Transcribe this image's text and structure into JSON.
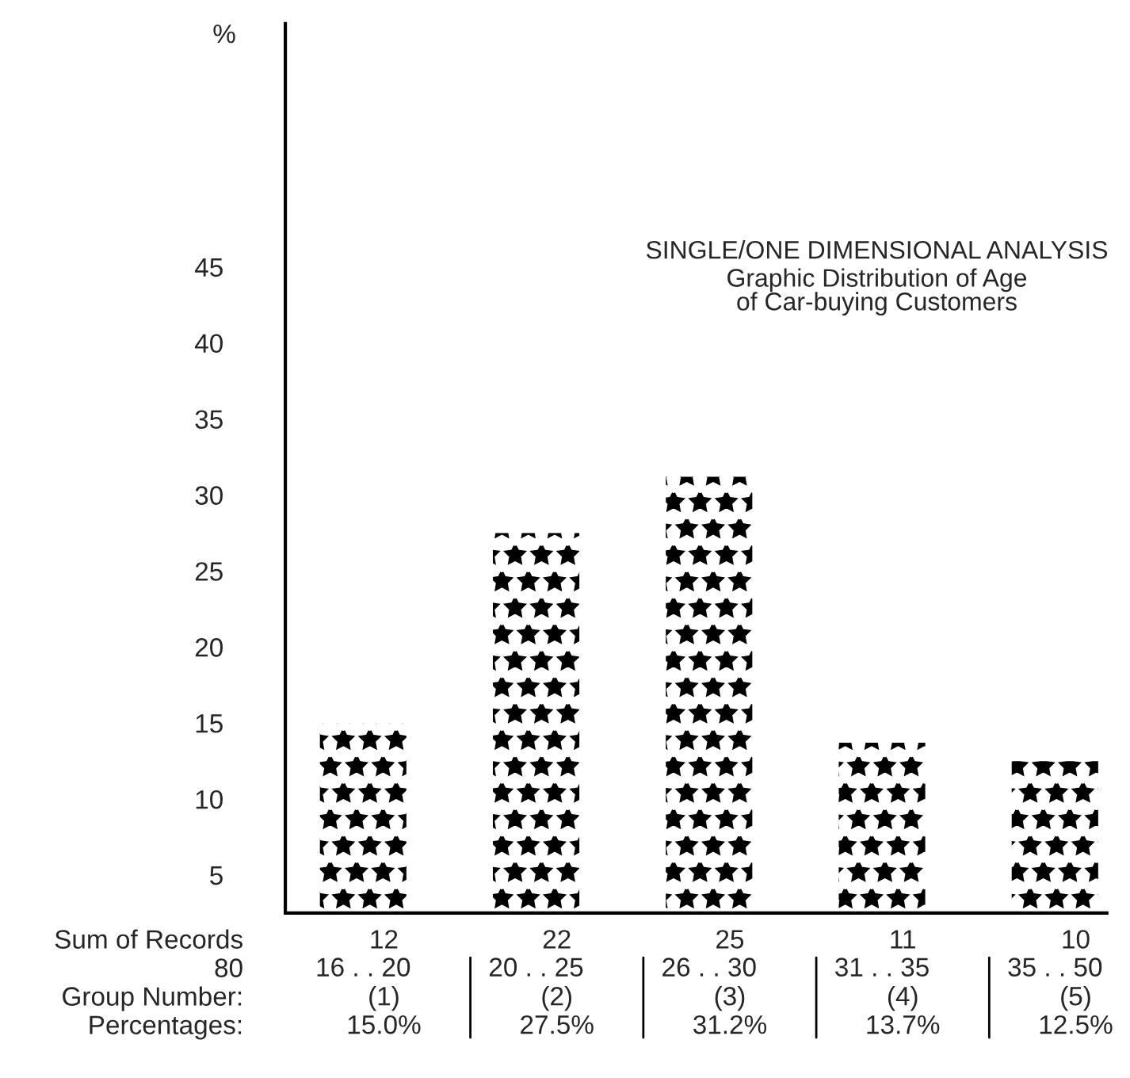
{
  "chart_data": {
    "type": "bar",
    "title": "SINGLE/ONE DIMENSIONAL ANALYSIS",
    "subtitle": "Graphic Distribution of Age\nof Car-buying Customers",
    "ylabel": "%",
    "categories": [
      "16 . . 20",
      "20 . . 25",
      "26 . . 30",
      "31 . . 35",
      "35 . . 50"
    ],
    "values": [
      15.0,
      27.5,
      31.2,
      13.7,
      12.5
    ],
    "value_labels": [
      "15.0%",
      "27.5%",
      "31.2%",
      "13.7%",
      "12.5%"
    ],
    "color": "#000000",
    "ylim": [
      2.5,
      61
    ],
    "yticks": [
      5,
      10,
      15,
      20,
      25,
      30,
      35,
      40,
      45
    ],
    "grid": false,
    "annotations": [
      "Sum of Records",
      "12",
      "22",
      "25",
      "11",
      "10",
      "80",
      "Group Number:",
      "(1)",
      "(2)",
      "(3)",
      "(4)",
      "(5)",
      "Percentages:"
    ]
  }
}
